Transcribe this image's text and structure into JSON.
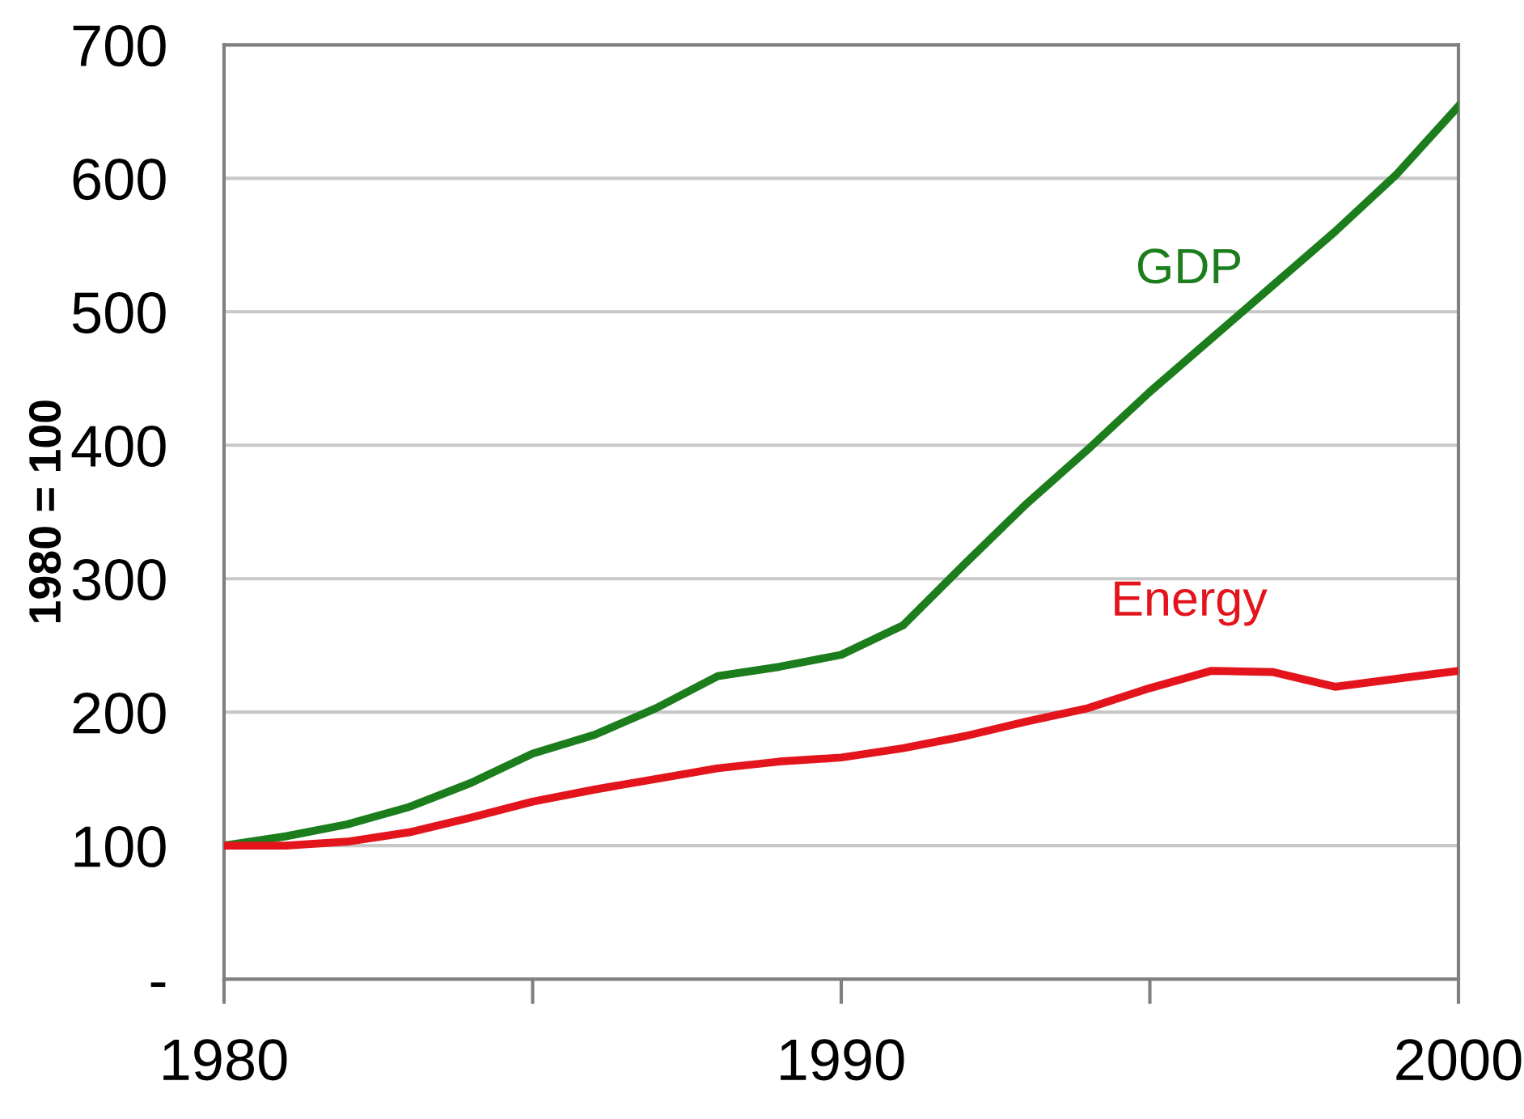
{
  "chart_data": {
    "type": "line",
    "ylabel": "1980 = 100",
    "x": [
      1980,
      1981,
      1982,
      1983,
      1984,
      1985,
      1986,
      1987,
      1988,
      1989,
      1990,
      1991,
      1992,
      1993,
      1994,
      1995,
      1996,
      1997,
      1998,
      1999,
      2000
    ],
    "series": [
      {
        "name": "GDP",
        "color": "#1b7d1b",
        "values": [
          100,
          107,
          116,
          129,
          147,
          169,
          183,
          203,
          227,
          234,
          243,
          265,
          311,
          356,
          397,
          440,
          480,
          520,
          560,
          603,
          654
        ]
      },
      {
        "name": "Energy",
        "color": "#e3141c",
        "values": [
          100,
          100,
          103,
          110,
          121,
          133,
          142,
          150,
          158,
          163,
          166,
          173,
          182,
          193,
          203,
          218,
          231,
          230,
          219,
          225,
          231
        ]
      }
    ],
    "xlim": [
      1980,
      2000
    ],
    "xticks": [
      1980,
      1990,
      2000
    ],
    "ylim": [
      0,
      700
    ],
    "yticks": [
      {
        "value": 0,
        "label": "-"
      },
      100,
      200,
      300,
      400,
      500,
      600,
      700
    ],
    "grid": "y",
    "legend": false,
    "marker": "none",
    "line_style": "solid"
  }
}
